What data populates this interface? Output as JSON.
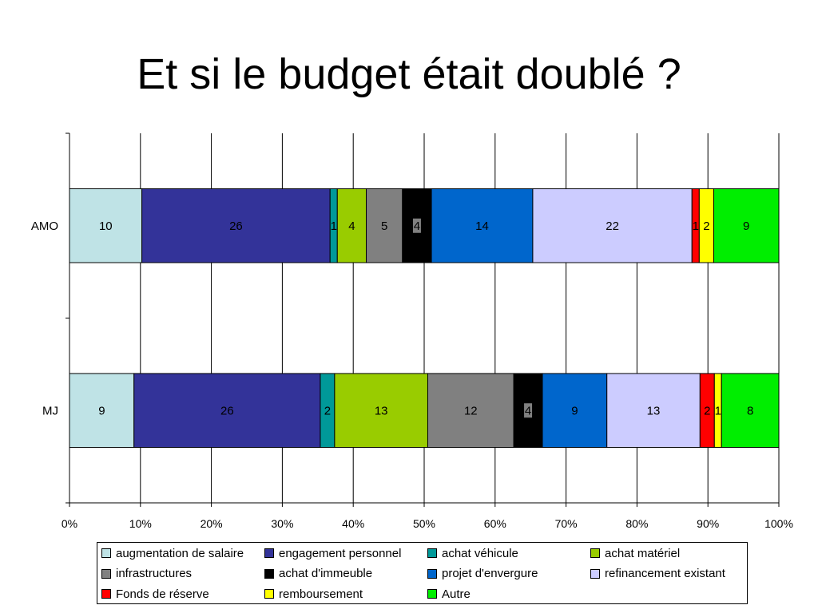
{
  "slide": {
    "title": "Et si le budget était doublé ?"
  },
  "chart_data": {
    "type": "bar",
    "orientation": "horizontal",
    "stacking": "percent",
    "categories": [
      "AMO",
      "MJ"
    ],
    "x_ticks": [
      "0%",
      "10%",
      "20%",
      "30%",
      "40%",
      "50%",
      "60%",
      "70%",
      "80%",
      "90%",
      "100%"
    ],
    "xlim": [
      0,
      100
    ],
    "grid": true,
    "legend_position": "bottom",
    "series": [
      {
        "name": "augmentation de salaire",
        "color": "#BFE3E6",
        "values": [
          10,
          9
        ]
      },
      {
        "name": "engagement personnel",
        "color": "#333399",
        "values": [
          26,
          26
        ]
      },
      {
        "name": "achat véhicule",
        "color": "#009999",
        "values": [
          1,
          2
        ]
      },
      {
        "name": "achat matériel",
        "color": "#99CC00",
        "values": [
          4,
          13
        ]
      },
      {
        "name": "infrastructures",
        "color": "#808080",
        "values": [
          5,
          12
        ]
      },
      {
        "name": "achat d'immeuble",
        "color": "#000000",
        "values": [
          4,
          4
        ]
      },
      {
        "name": "projet d'envergure",
        "color": "#0066CC",
        "values": [
          14,
          9
        ]
      },
      {
        "name": "refinancement existant",
        "color": "#CCCCFF",
        "values": [
          22,
          13
        ]
      },
      {
        "name": "Fonds de réserve",
        "color": "#FF0000",
        "values": [
          1,
          2
        ]
      },
      {
        "name": "remboursement",
        "color": "#FFFF00",
        "values": [
          2,
          1
        ]
      },
      {
        "name": "Autre",
        "color": "#00EE00",
        "values": [
          9,
          8
        ]
      }
    ]
  }
}
